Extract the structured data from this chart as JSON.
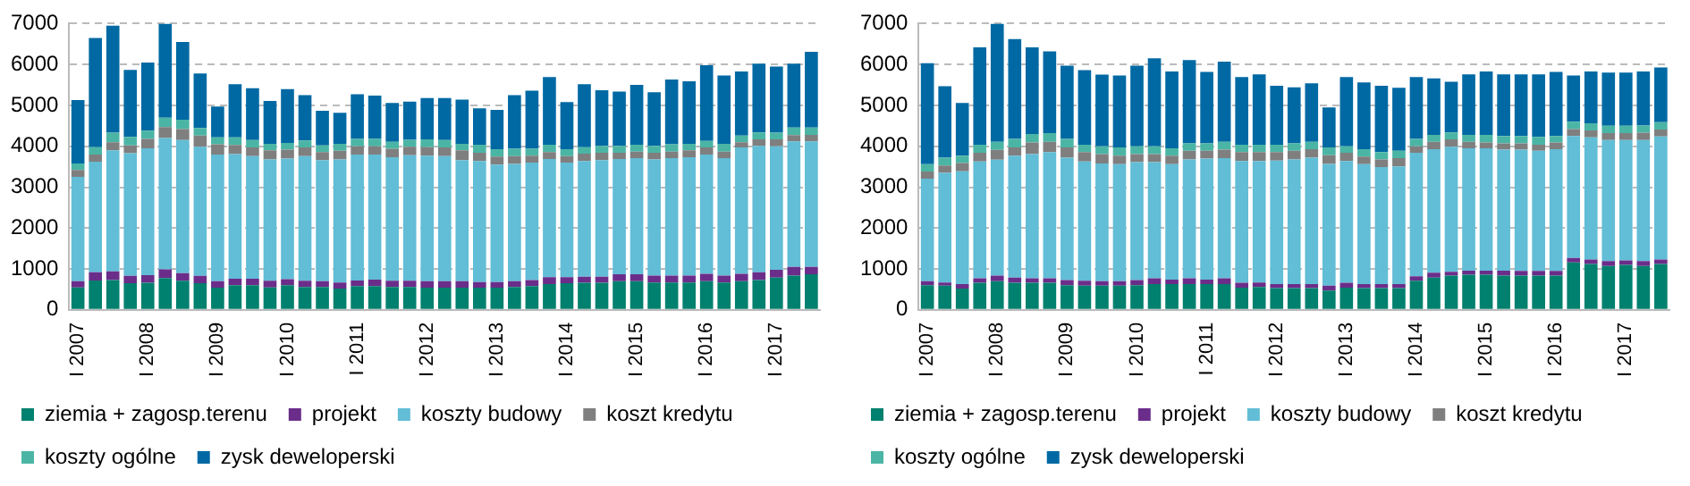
{
  "chart_data": [
    {
      "type": "bar",
      "stacked": true,
      "grid": "y",
      "legend": "bottom",
      "categories": [
        "I 2007",
        null,
        null,
        null,
        "I 2008",
        null,
        null,
        null,
        "I 2009",
        null,
        null,
        null,
        "I 2010",
        null,
        null,
        null,
        "I 2011",
        null,
        null,
        null,
        "I 2012",
        null,
        null,
        null,
        "I 2013",
        null,
        null,
        null,
        "I 2014",
        null,
        null,
        null,
        "I 2015",
        null,
        null,
        null,
        "I 2016",
        null,
        null,
        null,
        "I 2017",
        null,
        null
      ],
      "ylim": [
        0,
        7000
      ],
      "yticks": [
        0,
        1000,
        2000,
        3000,
        4000,
        5000,
        6000,
        7000
      ],
      "series": [
        {
          "name": "ziemia + zagosp.terenu",
          "color": "#00806e",
          "values": [
            550,
            720,
            730,
            650,
            660,
            780,
            710,
            650,
            540,
            600,
            600,
            550,
            600,
            560,
            560,
            520,
            580,
            580,
            560,
            560,
            540,
            540,
            540,
            540,
            540,
            560,
            580,
            630,
            650,
            660,
            660,
            700,
            700,
            670,
            670,
            670,
            700,
            670,
            700,
            730,
            790,
            840,
            870
          ]
        },
        {
          "name": "projekt",
          "color": "#6b2d8a",
          "values": [
            150,
            200,
            210,
            180,
            190,
            210,
            190,
            180,
            160,
            160,
            160,
            160,
            150,
            150,
            140,
            150,
            140,
            160,
            150,
            150,
            160,
            160,
            160,
            140,
            140,
            140,
            150,
            170,
            150,
            150,
            150,
            170,
            170,
            170,
            170,
            170,
            180,
            170,
            180,
            190,
            190,
            210,
            180
          ]
        },
        {
          "name": "koszty budowy",
          "color": "#62bdd6",
          "values": [
            2550,
            2700,
            2960,
            3000,
            3100,
            3210,
            3250,
            3160,
            3100,
            3050,
            3000,
            2970,
            2950,
            3050,
            2960,
            3010,
            3080,
            3060,
            3020,
            3070,
            3070,
            3060,
            2960,
            2960,
            2870,
            2870,
            2870,
            2890,
            2800,
            2830,
            2850,
            2820,
            2840,
            2840,
            2870,
            2890,
            2920,
            2870,
            3090,
            3090,
            3020,
            3070,
            3070
          ]
        },
        {
          "name": "koszt kredytu",
          "color": "#7f7f7f",
          "values": [
            170,
            180,
            200,
            190,
            230,
            270,
            270,
            270,
            250,
            220,
            210,
            220,
            220,
            210,
            200,
            210,
            200,
            200,
            210,
            210,
            210,
            210,
            240,
            200,
            200,
            190,
            170,
            170,
            160,
            180,
            180,
            150,
            160,
            160,
            160,
            170,
            170,
            160,
            130,
            160,
            170,
            150,
            160
          ]
        },
        {
          "name": "koszty ogólne",
          "color": "#4bb5a5",
          "values": [
            160,
            180,
            230,
            210,
            200,
            230,
            230,
            190,
            170,
            190,
            180,
            160,
            160,
            170,
            160,
            170,
            180,
            180,
            170,
            170,
            190,
            180,
            160,
            200,
            180,
            180,
            170,
            180,
            170,
            160,
            170,
            170,
            170,
            170,
            180,
            160,
            160,
            190,
            160,
            170,
            160,
            190,
            180
          ]
        },
        {
          "name": "zysk deweloperski",
          "color": "#0069a3",
          "values": [
            1550,
            2670,
            2620,
            1640,
            1670,
            2300,
            1900,
            1330,
            750,
            1300,
            1270,
            1050,
            1320,
            1110,
            850,
            760,
            1090,
            1060,
            950,
            930,
            1010,
            1030,
            1080,
            890,
            960,
            1310,
            1420,
            1650,
            1150,
            1540,
            1360,
            1330,
            1460,
            1310,
            1580,
            1530,
            1850,
            1670,
            1570,
            1680,
            1620,
            1560,
            1850
          ]
        }
      ]
    },
    {
      "type": "bar",
      "stacked": true,
      "grid": "y",
      "legend": "bottom",
      "categories": [
        "I 2007",
        null,
        null,
        null,
        "I 2008",
        null,
        null,
        null,
        "I 2009",
        null,
        null,
        null,
        "I 2010",
        null,
        null,
        null,
        "I 2011",
        null,
        null,
        null,
        "I 2012",
        null,
        null,
        null,
        "I 2013",
        null,
        null,
        null,
        "I 2014",
        null,
        null,
        null,
        "I 2015",
        null,
        null,
        null,
        "I 2016",
        null,
        null,
        null,
        "I 2017",
        null,
        null
      ],
      "ylim": [
        0,
        7000
      ],
      "yticks": [
        0,
        1000,
        2000,
        3000,
        4000,
        5000,
        6000,
        7000
      ],
      "series": [
        {
          "name": "ziemia + zagosp.terenu",
          "color": "#00806e",
          "values": [
            600,
            590,
            520,
            660,
            700,
            660,
            660,
            660,
            600,
            590,
            590,
            590,
            600,
            630,
            630,
            630,
            630,
            630,
            540,
            560,
            530,
            530,
            530,
            470,
            540,
            530,
            530,
            530,
            710,
            790,
            840,
            860,
            860,
            840,
            840,
            840,
            840,
            1160,
            1120,
            1070,
            1100,
            1070,
            1120
          ]
        },
        {
          "name": "projekt",
          "color": "#6b2d8a",
          "values": [
            100,
            80,
            110,
            110,
            140,
            130,
            110,
            110,
            130,
            120,
            110,
            110,
            130,
            140,
            110,
            140,
            110,
            140,
            120,
            110,
            100,
            100,
            100,
            120,
            120,
            100,
            100,
            100,
            110,
            120,
            90,
            100,
            100,
            120,
            110,
            110,
            110,
            110,
            110,
            120,
            110,
            120,
            110
          ]
        },
        {
          "name": "koszty budowy",
          "color": "#62bdd6",
          "values": [
            2510,
            2680,
            2760,
            2860,
            2830,
            2980,
            3040,
            3090,
            2990,
            2920,
            2880,
            2860,
            2880,
            2840,
            2820,
            2910,
            2960,
            2940,
            2980,
            2970,
            3020,
            3050,
            3090,
            2980,
            2980,
            2930,
            2860,
            2880,
            3020,
            3020,
            3060,
            2990,
            2990,
            2960,
            2970,
            2940,
            2980,
            2980,
            2990,
            2960,
            2940,
            2960,
            3010
          ]
        },
        {
          "name": "koszt kredytu",
          "color": "#7f7f7f",
          "values": [
            170,
            180,
            200,
            210,
            240,
            200,
            280,
            250,
            250,
            230,
            230,
            210,
            200,
            200,
            210,
            210,
            190,
            210,
            220,
            220,
            210,
            210,
            210,
            210,
            200,
            190,
            190,
            200,
            160,
            180,
            180,
            160,
            140,
            150,
            150,
            150,
            160,
            170,
            170,
            170,
            170,
            180,
            170
          ]
        },
        {
          "name": "koszty ogólne",
          "color": "#4bb5a5",
          "values": [
            180,
            190,
            180,
            200,
            200,
            210,
            210,
            210,
            210,
            180,
            190,
            200,
            190,
            190,
            180,
            180,
            180,
            190,
            180,
            180,
            180,
            180,
            180,
            190,
            160,
            180,
            180,
            180,
            180,
            170,
            170,
            170,
            190,
            180,
            180,
            190,
            160,
            180,
            170,
            180,
            180,
            180,
            180
          ]
        },
        {
          "name": "zysk deweloperski",
          "color": "#0069a3",
          "values": [
            2470,
            1750,
            1290,
            2380,
            2890,
            2440,
            2120,
            2000,
            1790,
            1820,
            1750,
            1760,
            1970,
            2150,
            1880,
            2040,
            1750,
            1960,
            1650,
            1720,
            1440,
            1370,
            1430,
            980,
            1690,
            1630,
            1620,
            1540,
            1510,
            1380,
            1240,
            1480,
            1550,
            1510,
            1510,
            1530,
            1570,
            1130,
            1270,
            1300,
            1300,
            1320,
            1340
          ]
        }
      ]
    }
  ]
}
